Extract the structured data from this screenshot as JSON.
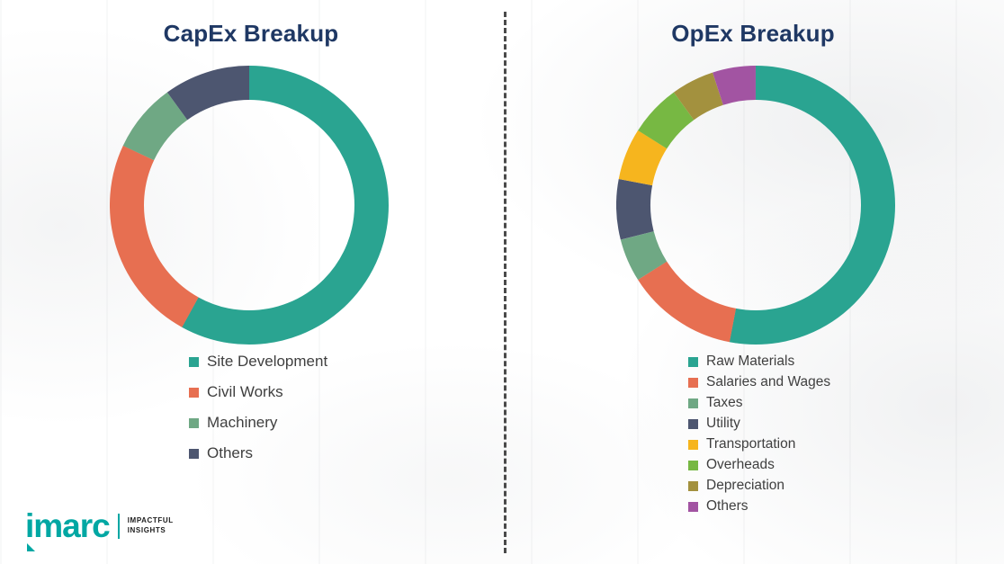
{
  "chart_data": [
    {
      "type": "pie",
      "subtype": "donut",
      "title": "CapEx Breakup",
      "legend_position": "bottom",
      "labels": [
        "Site Development",
        "Civil Works",
        "Machinery",
        "Others"
      ],
      "values": [
        58,
        24,
        8,
        10
      ],
      "colors": [
        "#2aa491",
        "#e76f51",
        "#6fa884",
        "#4d5670"
      ],
      "start_angle_deg": 0,
      "direction": "clockwise",
      "value_note": "percent, estimated from arc angles (no data labels shown)"
    },
    {
      "type": "pie",
      "subtype": "donut",
      "title": "OpEx Breakup",
      "legend_position": "bottom",
      "labels": [
        "Raw Materials",
        "Salaries and Wages",
        "Taxes",
        "Utility",
        "Transportation",
        "Overheads",
        "Depreciation",
        "Others"
      ],
      "values": [
        53,
        13,
        5,
        7,
        6,
        6,
        5,
        5
      ],
      "colors": [
        "#2aa491",
        "#e76f51",
        "#6fa884",
        "#4d5670",
        "#f6b51e",
        "#77b843",
        "#a3913e",
        "#a254a2"
      ],
      "start_angle_deg": 0,
      "direction": "clockwise",
      "value_note": "percent, estimated from arc angles (no data labels shown)"
    }
  ],
  "styles": {
    "title_color": "#1f3864",
    "legend_text_color": "#3f3f3f",
    "divider_style": "vertical dashed line"
  },
  "branding": {
    "logo_text": "imarc",
    "tagline_line1": "IMPACTFUL",
    "tagline_line2": "INSIGHTS",
    "logo_color": "#00a7a3"
  }
}
